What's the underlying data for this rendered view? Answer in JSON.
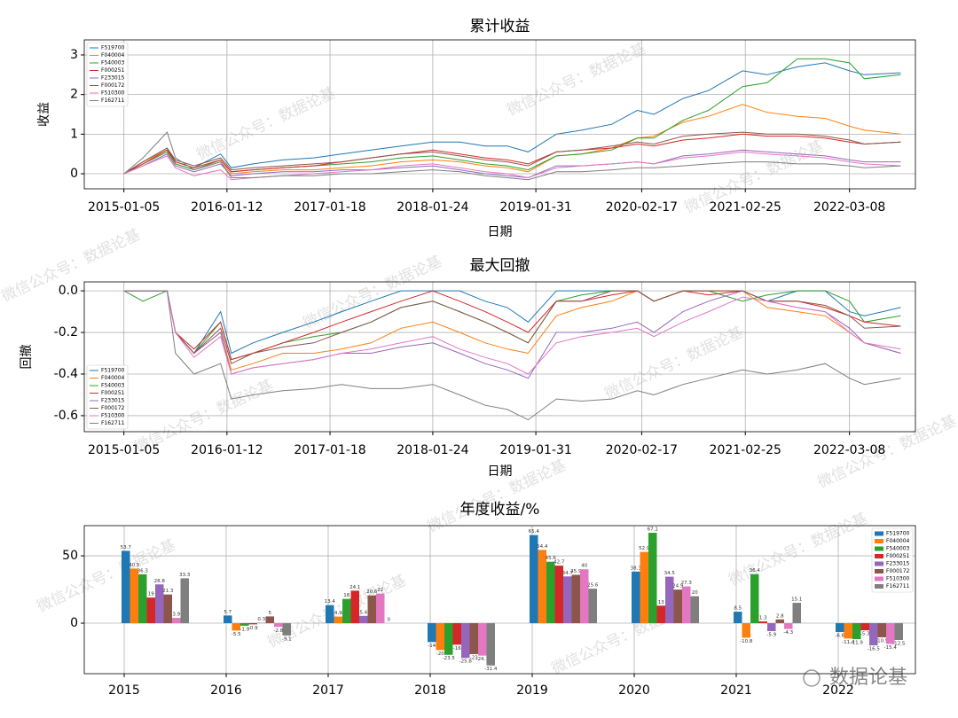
{
  "chart_data": [
    {
      "type": "line",
      "title": "累计收益",
      "xlabel": "日期",
      "ylabel": "收益",
      "legend": "upper left",
      "grid": true,
      "xlim": [
        "2014-08-15",
        "2022-11-01"
      ],
      "ylim": [
        -0.38,
        3.38
      ],
      "xticks": [
        "2015-01-05",
        "2016-01-12",
        "2017-01-18",
        "2018-01-24",
        "2019-01-31",
        "2020-02-17",
        "2021-02-25",
        "2022-03-08"
      ],
      "yticks": [
        0,
        1,
        2,
        3
      ],
      "x": [
        "2015-01-05",
        "2015-03-15",
        "2015-06-10",
        "2015-07-10",
        "2015-09-15",
        "2015-12-20",
        "2016-01-28",
        "2016-04-15",
        "2016-08-01",
        "2016-11-20",
        "2017-03-01",
        "2017-06-15",
        "2017-10-01",
        "2018-01-24",
        "2018-05-01",
        "2018-08-01",
        "2018-10-20",
        "2019-01-03",
        "2019-04-15",
        "2019-07-15",
        "2019-11-01",
        "2020-02-01",
        "2020-04-01",
        "2020-07-15",
        "2020-10-15",
        "2021-02-15",
        "2021-05-15",
        "2021-09-01",
        "2021-12-10",
        "2022-03-08",
        "2022-05-01",
        "2022-09-09"
      ],
      "series": [
        {
          "name": "F519700",
          "color": "#1f77b4",
          "values": [
            0,
            0.3,
            0.65,
            0.3,
            0.15,
            0.5,
            0.15,
            0.25,
            0.35,
            0.4,
            0.5,
            0.6,
            0.7,
            0.8,
            0.8,
            0.7,
            0.7,
            0.55,
            1.0,
            1.1,
            1.25,
            1.6,
            1.5,
            1.9,
            2.1,
            2.6,
            2.5,
            2.7,
            2.8,
            2.6,
            2.5,
            2.55
          ]
        },
        {
          "name": "F040004",
          "color": "#ff7f0e",
          "values": [
            0,
            0.3,
            0.6,
            0.25,
            0.1,
            0.3,
            0.0,
            0.05,
            0.1,
            0.1,
            0.15,
            0.2,
            0.3,
            0.35,
            0.3,
            0.2,
            0.15,
            0.05,
            0.45,
            0.5,
            0.65,
            0.9,
            0.95,
            1.3,
            1.45,
            1.75,
            1.55,
            1.45,
            1.4,
            1.2,
            1.1,
            1.0
          ]
        },
        {
          "name": "F540003",
          "color": "#2ca02c",
          "values": [
            0,
            0.25,
            0.55,
            0.25,
            0.1,
            0.35,
            0.05,
            0.1,
            0.15,
            0.2,
            0.25,
            0.3,
            0.4,
            0.45,
            0.35,
            0.25,
            0.2,
            0.1,
            0.45,
            0.5,
            0.6,
            0.9,
            0.9,
            1.35,
            1.6,
            2.2,
            2.3,
            2.9,
            2.9,
            2.8,
            2.4,
            2.5
          ]
        },
        {
          "name": "F000251",
          "color": "#d62728",
          "values": [
            0,
            0.25,
            0.6,
            0.3,
            0.15,
            0.35,
            0.05,
            0.1,
            0.15,
            0.2,
            0.3,
            0.4,
            0.5,
            0.6,
            0.5,
            0.4,
            0.35,
            0.25,
            0.55,
            0.6,
            0.65,
            0.75,
            0.7,
            0.85,
            0.9,
            1.0,
            0.95,
            0.95,
            0.9,
            0.8,
            0.75,
            0.8
          ]
        },
        {
          "name": "F233015",
          "color": "#9467bd",
          "values": [
            0,
            0.2,
            0.5,
            0.2,
            0.05,
            0.25,
            -0.05,
            0.0,
            0.05,
            0.05,
            0.1,
            0.1,
            0.15,
            0.2,
            0.1,
            0.0,
            -0.05,
            -0.1,
            0.2,
            0.2,
            0.25,
            0.3,
            0.25,
            0.45,
            0.5,
            0.6,
            0.55,
            0.5,
            0.45,
            0.35,
            0.3,
            0.3
          ]
        },
        {
          "name": "F000172",
          "color": "#8c564b",
          "values": [
            0,
            0.3,
            0.65,
            0.35,
            0.2,
            0.4,
            0.1,
            0.15,
            0.2,
            0.25,
            0.3,
            0.4,
            0.5,
            0.55,
            0.45,
            0.35,
            0.3,
            0.2,
            0.55,
            0.6,
            0.7,
            0.8,
            0.75,
            0.95,
            1.0,
            1.05,
            1.0,
            1.0,
            0.95,
            0.85,
            0.75,
            0.8
          ]
        },
        {
          "name": "F510300",
          "color": "#e377c2",
          "values": [
            0,
            0.2,
            0.45,
            0.15,
            -0.05,
            0.1,
            -0.15,
            -0.1,
            -0.05,
            0.0,
            0.05,
            0.1,
            0.2,
            0.25,
            0.15,
            0.05,
            0.0,
            -0.1,
            0.15,
            0.2,
            0.25,
            0.3,
            0.25,
            0.4,
            0.45,
            0.55,
            0.5,
            0.45,
            0.4,
            0.3,
            0.25,
            0.2
          ]
        },
        {
          "name": "F162711",
          "color": "#7f7f7f",
          "values": [
            0,
            0.4,
            1.05,
            0.4,
            0.1,
            0.3,
            -0.1,
            -0.1,
            -0.05,
            -0.05,
            0.0,
            0.0,
            0.05,
            0.1,
            0.05,
            -0.05,
            -0.1,
            -0.15,
            0.05,
            0.05,
            0.1,
            0.15,
            0.15,
            0.2,
            0.25,
            0.3,
            0.3,
            0.25,
            0.25,
            0.2,
            0.15,
            0.2
          ]
        }
      ]
    },
    {
      "type": "line",
      "title": "最大回撤",
      "xlabel": "日期",
      "ylabel": "回撤",
      "legend": "lower left",
      "grid": true,
      "xlim": [
        "2014-08-15",
        "2022-11-01"
      ],
      "ylim": [
        -0.677,
        0.043
      ],
      "xticks": [
        "2015-01-05",
        "2016-01-12",
        "2017-01-18",
        "2018-01-24",
        "2019-01-31",
        "2020-02-17",
        "2021-02-25",
        "2022-03-08"
      ],
      "yticks": [
        {
          "value": 0,
          "label": "0.0"
        },
        -0.2,
        -0.4,
        -0.6
      ],
      "x": [
        "2015-01-05",
        "2015-03-15",
        "2015-06-10",
        "2015-07-10",
        "2015-09-15",
        "2015-12-20",
        "2016-01-28",
        "2016-04-15",
        "2016-08-01",
        "2016-11-20",
        "2017-03-01",
        "2017-06-15",
        "2017-10-01",
        "2018-01-24",
        "2018-05-01",
        "2018-08-01",
        "2018-10-20",
        "2019-01-03",
        "2019-04-15",
        "2019-07-15",
        "2019-11-01",
        "2020-02-01",
        "2020-04-01",
        "2020-07-15",
        "2020-10-15",
        "2021-02-15",
        "2021-05-15",
        "2021-09-01",
        "2021-12-10",
        "2022-03-08",
        "2022-05-01",
        "2022-09-09"
      ],
      "series": [
        {
          "name": "F519700",
          "color": "#1f77b4",
          "values": [
            0,
            0,
            0,
            -0.2,
            -0.3,
            -0.1,
            -0.3,
            -0.25,
            -0.2,
            -0.15,
            -0.1,
            -0.05,
            0,
            0,
            0,
            -0.05,
            -0.08,
            -0.15,
            0,
            0,
            0,
            0,
            -0.05,
            0,
            0,
            0,
            -0.05,
            0,
            0,
            -0.1,
            -0.12,
            -0.08
          ]
        },
        {
          "name": "F040004",
          "color": "#ff7f0e",
          "values": [
            0,
            0,
            0,
            -0.2,
            -0.3,
            -0.2,
            -0.38,
            -0.35,
            -0.3,
            -0.3,
            -0.28,
            -0.25,
            -0.18,
            -0.15,
            -0.2,
            -0.25,
            -0.28,
            -0.3,
            -0.12,
            -0.08,
            -0.05,
            0,
            -0.05,
            0,
            0,
            0,
            -0.08,
            -0.1,
            -0.12,
            -0.2,
            -0.25,
            -0.3
          ]
        },
        {
          "name": "F540003",
          "color": "#2ca02c",
          "values": [
            0,
            -0.05,
            0,
            -0.2,
            -0.3,
            -0.15,
            -0.33,
            -0.3,
            -0.25,
            -0.22,
            -0.2,
            -0.15,
            -0.08,
            -0.05,
            -0.1,
            -0.15,
            -0.2,
            -0.25,
            -0.05,
            -0.02,
            0,
            0,
            -0.05,
            0,
            0,
            -0.05,
            -0.02,
            0,
            0,
            -0.05,
            -0.15,
            -0.12
          ]
        },
        {
          "name": "F000251",
          "color": "#d62728",
          "values": [
            0,
            0,
            0,
            -0.2,
            -0.28,
            -0.15,
            -0.33,
            -0.3,
            -0.25,
            -0.2,
            -0.15,
            -0.1,
            -0.05,
            0,
            -0.05,
            -0.1,
            -0.15,
            -0.2,
            -0.05,
            -0.05,
            -0.02,
            0,
            -0.05,
            0,
            -0.02,
            0,
            -0.05,
            -0.05,
            -0.08,
            -0.12,
            -0.15,
            -0.17
          ]
        },
        {
          "name": "F233015",
          "color": "#9467bd",
          "values": [
            0,
            0,
            0,
            -0.2,
            -0.3,
            -0.2,
            -0.4,
            -0.37,
            -0.35,
            -0.33,
            -0.3,
            -0.3,
            -0.27,
            -0.25,
            -0.3,
            -0.35,
            -0.38,
            -0.42,
            -0.2,
            -0.2,
            -0.18,
            -0.15,
            -0.2,
            -0.1,
            -0.05,
            0,
            -0.05,
            -0.08,
            -0.1,
            -0.18,
            -0.25,
            -0.3
          ]
        },
        {
          "name": "F000172",
          "color": "#8c564b",
          "values": [
            0,
            0,
            0,
            -0.2,
            -0.3,
            -0.18,
            -0.35,
            -0.3,
            -0.27,
            -0.25,
            -0.2,
            -0.15,
            -0.08,
            -0.05,
            -0.1,
            -0.15,
            -0.2,
            -0.25,
            -0.05,
            -0.05,
            0,
            0,
            -0.05,
            0,
            0,
            0,
            -0.05,
            -0.05,
            -0.07,
            -0.12,
            -0.18,
            -0.17
          ]
        },
        {
          "name": "F510300",
          "color": "#e377c2",
          "values": [
            0,
            0,
            0,
            -0.2,
            -0.32,
            -0.22,
            -0.4,
            -0.37,
            -0.35,
            -0.33,
            -0.3,
            -0.28,
            -0.25,
            -0.22,
            -0.28,
            -0.32,
            -0.35,
            -0.4,
            -0.25,
            -0.22,
            -0.2,
            -0.18,
            -0.22,
            -0.15,
            -0.1,
            -0.03,
            -0.05,
            -0.08,
            -0.1,
            -0.2,
            -0.25,
            -0.28
          ]
        },
        {
          "name": "F162711",
          "color": "#7f7f7f",
          "values": [
            0,
            0,
            0,
            -0.3,
            -0.4,
            -0.35,
            -0.52,
            -0.5,
            -0.48,
            -0.47,
            -0.45,
            -0.47,
            -0.47,
            -0.45,
            -0.5,
            -0.55,
            -0.57,
            -0.62,
            -0.52,
            -0.53,
            -0.52,
            -0.48,
            -0.5,
            -0.45,
            -0.42,
            -0.38,
            -0.4,
            -0.38,
            -0.35,
            -0.42,
            -0.45,
            -0.42
          ]
        }
      ]
    },
    {
      "type": "bar",
      "title": "年度收益/%",
      "legend": "upper right",
      "grid": true,
      "ylim": [
        -37.5,
        72.4
      ],
      "yticks": [
        0,
        50
      ],
      "categories": [
        "2015",
        "2016",
        "2017",
        "2018",
        "2019",
        "2020",
        "2021",
        "2022"
      ],
      "series": [
        {
          "name": "F519700",
          "color": "#1f77b4",
          "values": [
            53.7,
            5.7,
            13.4,
            -14,
            65.4,
            38.3,
            8.5,
            -6.6
          ]
        },
        {
          "name": "F040004",
          "color": "#ff7f0e",
          "values": [
            40.5,
            -5.5,
            4.9,
            -20,
            54.4,
            52.9,
            -10.8,
            -11.4
          ]
        },
        {
          "name": "F540003",
          "color": "#2ca02c",
          "values": [
            36.3,
            -1.9,
            18,
            -23.5,
            45.6,
            67.1,
            36.4,
            -11.9
          ]
        },
        {
          "name": "F000251",
          "color": "#d62728",
          "values": [
            19,
            -0.9,
            24.1,
            -16,
            42.7,
            13,
            1.3,
            -5.3
          ]
        },
        {
          "name": "F233015",
          "color": "#9467bd",
          "values": [
            28.8,
            0.3,
            5.4,
            -25.8,
            34.7,
            34.5,
            -5.9,
            -16.5
          ]
        },
        {
          "name": "F000172",
          "color": "#8c564b",
          "values": [
            21.3,
            5,
            20.6,
            -23,
            35.9,
            24.9,
            2.8,
            -10.5
          ]
        },
        {
          "name": "F510300",
          "color": "#e377c2",
          "values": [
            3.9,
            -2.8,
            22,
            -24.1,
            40,
            27.3,
            -4.3,
            -15.4
          ]
        },
        {
          "name": "F162711",
          "color": "#7f7f7f",
          "values": [
            33.3,
            -9.1,
            0,
            -31.4,
            25.6,
            20,
            15.1,
            -12.5
          ]
        }
      ]
    }
  ],
  "watermark": "微信公众号：数据论基",
  "logo": "数据论基"
}
